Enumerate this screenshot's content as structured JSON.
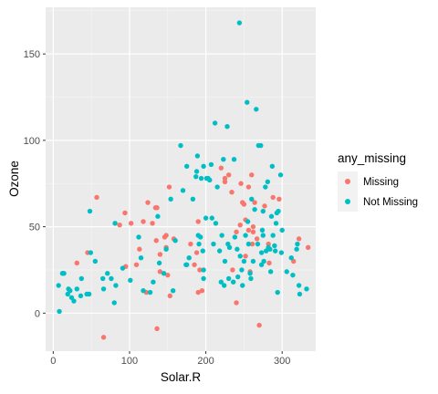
{
  "chart_data": {
    "type": "scatter",
    "xlabel": "Solar.R",
    "ylabel": "Ozone",
    "xlim": [
      -10,
      344
    ],
    "ylim": [
      -22,
      177
    ],
    "x_ticks": [
      0,
      100,
      200,
      300
    ],
    "y_ticks": [
      0,
      50,
      100,
      150
    ],
    "x_tick_labels": [
      "0",
      "100",
      "200",
      "300"
    ],
    "y_tick_labels": [
      "0",
      "50",
      "100",
      "150"
    ],
    "grid": true,
    "legend_position": "right",
    "legend_title": "any_missing",
    "series": [
      {
        "name": "Missing",
        "color": "#F8766D",
        "points": [
          [
            57,
            67
          ],
          [
            66,
            -14
          ],
          [
            87,
            51
          ],
          [
            94,
            58
          ],
          [
            102,
            52
          ],
          [
            118,
            53
          ],
          [
            124,
            64
          ],
          [
            136,
            61
          ],
          [
            152,
            73
          ],
          [
            135,
            42
          ],
          [
            148,
            45
          ],
          [
            140,
            34
          ],
          [
            136,
            -9
          ],
          [
            95,
            27
          ],
          [
            113,
            37
          ],
          [
            130,
            52
          ],
          [
            134,
            61
          ],
          [
            140,
            24
          ],
          [
            150,
            22
          ],
          [
            220,
            84
          ],
          [
            225,
            78
          ],
          [
            230,
            80
          ],
          [
            260,
            80
          ],
          [
            261,
            40
          ],
          [
            262,
            47
          ],
          [
            245,
            51
          ],
          [
            250,
            63
          ],
          [
            248,
            64
          ],
          [
            252,
            54
          ],
          [
            256,
            48
          ],
          [
            262,
            50
          ],
          [
            235,
            25
          ],
          [
            240,
            6
          ],
          [
            258,
            24
          ],
          [
            288,
            67
          ],
          [
            277,
            62
          ],
          [
            267,
            43
          ],
          [
            282,
            40
          ],
          [
            296,
            66
          ],
          [
            283,
            29
          ],
          [
            188,
            35
          ],
          [
            185,
            28
          ],
          [
            180,
            40
          ],
          [
            190,
            12
          ],
          [
            195,
            13
          ],
          [
            158,
            43
          ],
          [
            153,
            10
          ],
          [
            109,
            28
          ],
          [
            146,
            44
          ],
          [
            148,
            38
          ],
          [
            122,
            12
          ],
          [
            45,
            35
          ],
          [
            31,
            29
          ],
          [
            315,
            30
          ],
          [
            322,
            43
          ],
          [
            334,
            38
          ],
          [
            270,
            -7
          ],
          [
            192,
            25
          ],
          [
            190,
            53
          ],
          [
            234,
            70
          ],
          [
            256,
            73
          ],
          [
            264,
            64
          ],
          [
            225,
            76
          ],
          [
            246,
            75
          ],
          [
            252,
            33
          ],
          [
            240,
            47
          ]
        ]
      },
      {
        "name": "Not Missing",
        "color": "#00BFC4",
        "points": [
          [
            8,
            1
          ],
          [
            7,
            16
          ],
          [
            12,
            23
          ],
          [
            14,
            23
          ],
          [
            19,
            11
          ],
          [
            20,
            14
          ],
          [
            22,
            13
          ],
          [
            24,
            9
          ],
          [
            27,
            7
          ],
          [
            31,
            14
          ],
          [
            36,
            10
          ],
          [
            37,
            20
          ],
          [
            44,
            11
          ],
          [
            47,
            11
          ],
          [
            48,
            59
          ],
          [
            49,
            35
          ],
          [
            65,
            20
          ],
          [
            66,
            14
          ],
          [
            71,
            23
          ],
          [
            76,
            20
          ],
          [
            80,
            6
          ],
          [
            81,
            52
          ],
          [
            82,
            16
          ],
          [
            91,
            26
          ],
          [
            101,
            19
          ],
          [
            112,
            44
          ],
          [
            115,
            32
          ],
          [
            118,
            13
          ],
          [
            127,
            12
          ],
          [
            131,
            18
          ],
          [
            137,
            56
          ],
          [
            139,
            29
          ],
          [
            145,
            23
          ],
          [
            148,
            37
          ],
          [
            154,
            66
          ],
          [
            157,
            13
          ],
          [
            167,
            97
          ],
          [
            170,
            71
          ],
          [
            174,
            28
          ],
          [
            175,
            28
          ],
          [
            175,
            85
          ],
          [
            183,
            66
          ],
          [
            187,
            79
          ],
          [
            188,
            82
          ],
          [
            189,
            91
          ],
          [
            190,
            45
          ],
          [
            191,
            40
          ],
          [
            193,
            44
          ],
          [
            194,
            78
          ],
          [
            196,
            36
          ],
          [
            197,
            20
          ],
          [
            197,
            85
          ],
          [
            197,
            25
          ],
          [
            201,
            78
          ],
          [
            203,
            78
          ],
          [
            205,
            77
          ],
          [
            207,
            86
          ],
          [
            212,
            110
          ],
          [
            215,
            73
          ],
          [
            218,
            36
          ],
          [
            220,
            18
          ],
          [
            221,
            45
          ],
          [
            223,
            89
          ],
          [
            224,
            16
          ],
          [
            225,
            30
          ],
          [
            228,
            108
          ],
          [
            229,
            40
          ],
          [
            230,
            20
          ],
          [
            236,
            18
          ],
          [
            237,
            89
          ],
          [
            238,
            44
          ],
          [
            242,
            21
          ],
          [
            244,
            168
          ],
          [
            245,
            33
          ],
          [
            247,
            25
          ],
          [
            248,
            16
          ],
          [
            252,
            45
          ],
          [
            254,
            122
          ],
          [
            255,
            53
          ],
          [
            258,
            23
          ],
          [
            259,
            20
          ],
          [
            260,
            66
          ],
          [
            264,
            60
          ],
          [
            266,
            118
          ],
          [
            268,
            40
          ],
          [
            269,
            97
          ],
          [
            272,
            97
          ],
          [
            273,
            35
          ],
          [
            273,
            28
          ],
          [
            274,
            48
          ],
          [
            275,
            59
          ],
          [
            276,
            30
          ],
          [
            278,
            73
          ],
          [
            279,
            36
          ],
          [
            281,
            76
          ],
          [
            282,
            38
          ],
          [
            284,
            37
          ],
          [
            285,
            24
          ],
          [
            286,
            56
          ],
          [
            287,
            85
          ],
          [
            288,
            45
          ],
          [
            290,
            39
          ],
          [
            291,
            36
          ],
          [
            292,
            52
          ],
          [
            293,
            58
          ],
          [
            294,
            12
          ],
          [
            295,
            59
          ],
          [
            298,
            80
          ],
          [
            299,
            35
          ],
          [
            300,
            48
          ],
          [
            306,
            24
          ],
          [
            312,
            32
          ],
          [
            314,
            22
          ],
          [
            319,
            37
          ],
          [
            320,
            40
          ],
          [
            322,
            16
          ],
          [
            323,
            11
          ],
          [
            332,
            14
          ],
          [
            275,
            45
          ],
          [
            262,
            30
          ],
          [
            256,
            40
          ],
          [
            250,
            30
          ],
          [
            241,
            37
          ],
          [
            231,
            38
          ],
          [
            213,
            52
          ],
          [
            210,
            40
          ],
          [
            208,
            55
          ],
          [
            200,
            55
          ],
          [
            178,
            32
          ],
          [
            160,
            42
          ],
          [
            55,
            30
          ]
        ]
      }
    ]
  }
}
